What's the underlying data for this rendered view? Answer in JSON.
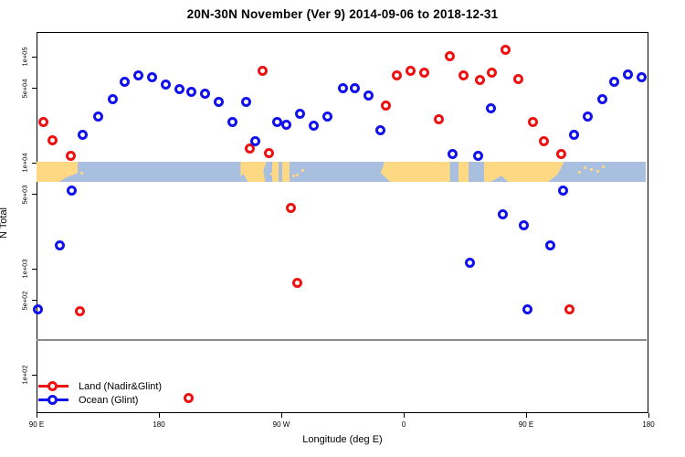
{
  "title": "20N-30N November (Ver 9)   2014-09-06 to 2018-12-31",
  "axes": {
    "x_label": "Longitude (deg E)",
    "y_label": "N Total",
    "x_ticks": [
      {
        "deg": 90,
        "label": "90 E"
      },
      {
        "deg": 180,
        "label": "180"
      },
      {
        "deg": 270,
        "label": "90 W"
      },
      {
        "deg": 360,
        "label": "0"
      },
      {
        "deg": 450,
        "label": "90 E"
      },
      {
        "deg": 540,
        "label": "180"
      }
    ],
    "y_ticks": [
      {
        "value": 100000,
        "label": "1e+05"
      },
      {
        "value": 50000,
        "label": "5e+04"
      },
      {
        "value": 10000,
        "label": "1e+04"
      },
      {
        "value": 5000,
        "label": "5e+03"
      },
      {
        "value": 1000,
        "label": "1e+03"
      },
      {
        "value": 500,
        "label": "5e+02"
      },
      {
        "value": 100,
        "label": "1e+02"
      }
    ],
    "y_scale": "log",
    "x_axis_note": "longitude axis wraps: 90E to 180 to 90W to 0 to 90E to 180; stored as 90..540 deg"
  },
  "colors": {
    "land_series": "#ee1111",
    "ocean_series": "#1111ee",
    "map_land": "#ffd884",
    "map_ocean": "#a9bfdf",
    "threshold_line": "#8a8a8a",
    "axis": "#000000"
  },
  "legend": {
    "items": [
      {
        "name": "land",
        "label": "Land (Nadir&Glint)",
        "color": "#ee1111"
      },
      {
        "name": "ocean",
        "label": "Ocean (Glint)",
        "color": "#1111ee"
      }
    ]
  },
  "threshold_value": 220,
  "map_strip": {
    "land_segments": [
      {
        "from": 90,
        "to": 120.5
      },
      {
        "from": 240,
        "to": 259
      },
      {
        "from": 263,
        "to": 268
      },
      {
        "from": 271,
        "to": 276
      },
      {
        "from": 343,
        "to": 394
      },
      {
        "from": 400,
        "to": 408
      },
      {
        "from": 419,
        "to": 478
      }
    ],
    "islands": [
      122,
      262,
      278,
      281,
      285,
      488,
      492,
      497,
      502,
      506
    ]
  },
  "chart_data": {
    "type": "scatter",
    "xlim": [
      90,
      540
    ],
    "ylim": [
      43,
      171000
    ],
    "yscale": "log",
    "grid": false,
    "legend_position": "bottom-left",
    "series": [
      {
        "name": "Land (Nadir&Glint)",
        "color": "#ee1111",
        "points": [
          [
            95,
            24400
          ],
          [
            102,
            16400
          ],
          [
            115,
            11500
          ],
          [
            256,
            73000
          ],
          [
            247,
            13700
          ],
          [
            261,
            12200
          ],
          [
            277,
            3710
          ],
          [
            282,
            730
          ],
          [
            122,
            400
          ],
          [
            347,
            34900
          ],
          [
            355,
            66000
          ],
          [
            365,
            72800
          ],
          [
            375,
            71300
          ],
          [
            386,
            25900
          ],
          [
            394,
            102000
          ],
          [
            404,
            66000
          ],
          [
            416,
            59700
          ],
          [
            425,
            71300
          ],
          [
            435,
            117000
          ],
          [
            444,
            62100
          ],
          [
            455,
            24400
          ],
          [
            463,
            16100
          ],
          [
            476,
            12000
          ],
          [
            482,
            410
          ],
          [
            202,
            60
          ]
        ]
      },
      {
        "name": "Ocean (Glint)",
        "color": "#1111ee",
        "points": [
          [
            124,
            18200
          ],
          [
            135,
            27000
          ],
          [
            146,
            40100
          ],
          [
            155,
            58500
          ],
          [
            165,
            66000
          ],
          [
            175,
            63400
          ],
          [
            185,
            54100
          ],
          [
            195,
            49000
          ],
          [
            204,
            47000
          ],
          [
            214,
            44400
          ],
          [
            224,
            37100
          ],
          [
            234,
            24400
          ],
          [
            244,
            37800
          ],
          [
            251,
            16100
          ],
          [
            267,
            24400
          ],
          [
            274,
            23000
          ],
          [
            284,
            29200
          ],
          [
            294,
            22500
          ],
          [
            304,
            27000
          ],
          [
            315,
            50900
          ],
          [
            324,
            50900
          ],
          [
            334,
            42600
          ],
          [
            343,
            20400
          ],
          [
            396,
            12000
          ],
          [
            415,
            11700
          ],
          [
            424,
            32300
          ],
          [
            485,
            18200
          ],
          [
            495,
            27000
          ],
          [
            506,
            39400
          ],
          [
            515,
            57400
          ],
          [
            525,
            67300
          ],
          [
            535,
            64600
          ],
          [
            116,
            5410
          ],
          [
            107,
            1670
          ],
          [
            91,
            410
          ],
          [
            409,
            1130
          ],
          [
            433,
            3230
          ],
          [
            448,
            2590
          ],
          [
            468,
            1670
          ],
          [
            477,
            5410
          ],
          [
            451,
            410
          ]
        ]
      }
    ]
  }
}
